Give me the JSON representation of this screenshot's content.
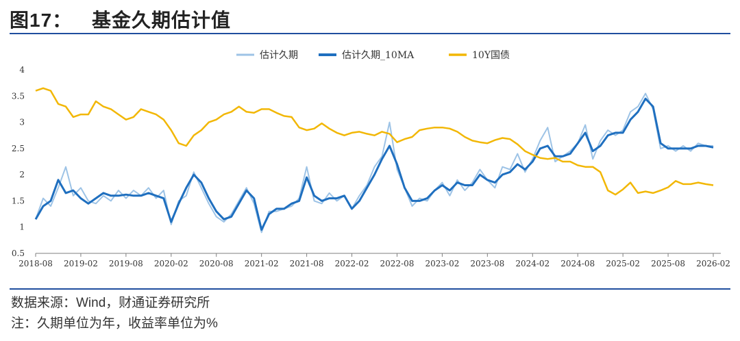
{
  "header": {
    "figure_label": "图17：",
    "title": "基金久期估计值"
  },
  "footer": {
    "source": "数据来源：Wind，财通证券研究所",
    "unit_note": "注：久期单位为年，收益率单位为%"
  },
  "chart_data": {
    "type": "line",
    "ylim": [
      0.5,
      4
    ],
    "yticks": [
      "0.5",
      "1",
      "1.5",
      "2",
      "2.5",
      "3",
      "3.5",
      "4"
    ],
    "xlim": [
      "2018-08",
      "2026-03"
    ],
    "xticks": [
      "2018-08",
      "2019-02",
      "2019-08",
      "2020-02",
      "2020-08",
      "2021-02",
      "2021-08",
      "2022-02",
      "2022-08",
      "2023-02",
      "2023-08",
      "2024-02",
      "2024-08",
      "2025-02",
      "2025-08",
      "2026-02"
    ],
    "legend_position": "top-center",
    "grid": false,
    "series": [
      {
        "name": "估计久期",
        "color": "#9dc3e6",
        "width": 2,
        "points": [
          [
            "2018-08",
            1.15
          ],
          [
            "2018-09",
            1.55
          ],
          [
            "2018-10",
            1.4
          ],
          [
            "2018-11",
            1.75
          ],
          [
            "2018-12",
            2.15
          ],
          [
            "2019-01",
            1.6
          ],
          [
            "2019-02",
            1.75
          ],
          [
            "2019-03",
            1.5
          ],
          [
            "2019-04",
            1.45
          ],
          [
            "2019-05",
            1.6
          ],
          [
            "2019-06",
            1.5
          ],
          [
            "2019-07",
            1.7
          ],
          [
            "2019-08",
            1.55
          ],
          [
            "2019-09",
            1.7
          ],
          [
            "2019-10",
            1.6
          ],
          [
            "2019-11",
            1.75
          ],
          [
            "2019-12",
            1.55
          ],
          [
            "2020-01",
            1.7
          ],
          [
            "2020-02",
            1.05
          ],
          [
            "2020-03",
            1.5
          ],
          [
            "2020-04",
            1.6
          ],
          [
            "2020-05",
            2.05
          ],
          [
            "2020-06",
            1.75
          ],
          [
            "2020-07",
            1.45
          ],
          [
            "2020-08",
            1.2
          ],
          [
            "2020-09",
            1.1
          ],
          [
            "2020-10",
            1.25
          ],
          [
            "2020-11",
            1.5
          ],
          [
            "2020-12",
            1.75
          ],
          [
            "2021-01",
            1.45
          ],
          [
            "2021-02",
            0.9
          ],
          [
            "2021-03",
            1.3
          ],
          [
            "2021-04",
            1.3
          ],
          [
            "2021-05",
            1.35
          ],
          [
            "2021-06",
            1.4
          ],
          [
            "2021-07",
            1.55
          ],
          [
            "2021-08",
            2.15
          ],
          [
            "2021-09",
            1.5
          ],
          [
            "2021-10",
            1.45
          ],
          [
            "2021-11",
            1.65
          ],
          [
            "2021-12",
            1.5
          ],
          [
            "2022-01",
            1.6
          ],
          [
            "2022-02",
            1.35
          ],
          [
            "2022-03",
            1.6
          ],
          [
            "2022-04",
            1.8
          ],
          [
            "2022-05",
            2.15
          ],
          [
            "2022-06",
            2.35
          ],
          [
            "2022-07",
            3.0
          ],
          [
            "2022-08",
            2.1
          ],
          [
            "2022-09",
            1.75
          ],
          [
            "2022-10",
            1.4
          ],
          [
            "2022-11",
            1.55
          ],
          [
            "2022-12",
            1.5
          ],
          [
            "2023-01",
            1.7
          ],
          [
            "2023-02",
            1.85
          ],
          [
            "2023-03",
            1.6
          ],
          [
            "2023-04",
            1.9
          ],
          [
            "2023-05",
            1.7
          ],
          [
            "2023-06",
            1.85
          ],
          [
            "2023-07",
            2.1
          ],
          [
            "2023-08",
            1.9
          ],
          [
            "2023-09",
            1.75
          ],
          [
            "2023-10",
            2.15
          ],
          [
            "2023-11",
            2.1
          ],
          [
            "2023-12",
            2.4
          ],
          [
            "2024-01",
            2.05
          ],
          [
            "2024-02",
            2.3
          ],
          [
            "2024-03",
            2.65
          ],
          [
            "2024-04",
            2.9
          ],
          [
            "2024-05",
            2.25
          ],
          [
            "2024-06",
            2.35
          ],
          [
            "2024-07",
            2.45
          ],
          [
            "2024-08",
            2.6
          ],
          [
            "2024-09",
            2.95
          ],
          [
            "2024-10",
            2.3
          ],
          [
            "2024-11",
            2.65
          ],
          [
            "2024-12",
            2.85
          ],
          [
            "2025-01",
            2.75
          ],
          [
            "2025-02",
            2.85
          ],
          [
            "2025-03",
            3.2
          ],
          [
            "2025-04",
            3.3
          ],
          [
            "2025-05",
            3.55
          ],
          [
            "2025-06",
            3.25
          ],
          [
            "2025-07",
            2.5
          ],
          [
            "2025-08",
            2.55
          ],
          [
            "2025-09",
            2.45
          ],
          [
            "2025-10",
            2.55
          ],
          [
            "2025-11",
            2.45
          ],
          [
            "2025-12",
            2.6
          ],
          [
            "2026-01",
            2.55
          ],
          [
            "2026-02",
            2.55
          ]
        ]
      },
      {
        "name": "估计久期_10MA",
        "color": "#1f6fbf",
        "width": 3,
        "points": [
          [
            "2018-08",
            1.15
          ],
          [
            "2018-09",
            1.4
          ],
          [
            "2018-10",
            1.5
          ],
          [
            "2018-11",
            1.9
          ],
          [
            "2018-12",
            1.65
          ],
          [
            "2019-01",
            1.7
          ],
          [
            "2019-02",
            1.55
          ],
          [
            "2019-03",
            1.45
          ],
          [
            "2019-04",
            1.55
          ],
          [
            "2019-05",
            1.65
          ],
          [
            "2019-06",
            1.6
          ],
          [
            "2019-07",
            1.6
          ],
          [
            "2019-08",
            1.62
          ],
          [
            "2019-09",
            1.6
          ],
          [
            "2019-10",
            1.6
          ],
          [
            "2019-11",
            1.65
          ],
          [
            "2019-12",
            1.6
          ],
          [
            "2020-01",
            1.55
          ],
          [
            "2020-02",
            1.1
          ],
          [
            "2020-03",
            1.45
          ],
          [
            "2020-04",
            1.75
          ],
          [
            "2020-05",
            2.0
          ],
          [
            "2020-06",
            1.85
          ],
          [
            "2020-07",
            1.55
          ],
          [
            "2020-08",
            1.3
          ],
          [
            "2020-09",
            1.15
          ],
          [
            "2020-10",
            1.2
          ],
          [
            "2020-11",
            1.45
          ],
          [
            "2020-12",
            1.7
          ],
          [
            "2021-01",
            1.55
          ],
          [
            "2021-02",
            0.95
          ],
          [
            "2021-03",
            1.25
          ],
          [
            "2021-04",
            1.35
          ],
          [
            "2021-05",
            1.35
          ],
          [
            "2021-06",
            1.45
          ],
          [
            "2021-07",
            1.5
          ],
          [
            "2021-08",
            1.95
          ],
          [
            "2021-09",
            1.6
          ],
          [
            "2021-10",
            1.5
          ],
          [
            "2021-11",
            1.55
          ],
          [
            "2021-12",
            1.55
          ],
          [
            "2022-01",
            1.6
          ],
          [
            "2022-02",
            1.35
          ],
          [
            "2022-03",
            1.5
          ],
          [
            "2022-04",
            1.75
          ],
          [
            "2022-05",
            2.0
          ],
          [
            "2022-06",
            2.3
          ],
          [
            "2022-07",
            2.55
          ],
          [
            "2022-08",
            2.2
          ],
          [
            "2022-09",
            1.75
          ],
          [
            "2022-10",
            1.5
          ],
          [
            "2022-11",
            1.5
          ],
          [
            "2022-12",
            1.55
          ],
          [
            "2023-01",
            1.7
          ],
          [
            "2023-02",
            1.8
          ],
          [
            "2023-03",
            1.7
          ],
          [
            "2023-04",
            1.85
          ],
          [
            "2023-05",
            1.8
          ],
          [
            "2023-06",
            1.8
          ],
          [
            "2023-07",
            2.0
          ],
          [
            "2023-08",
            1.9
          ],
          [
            "2023-09",
            1.85
          ],
          [
            "2023-10",
            2.0
          ],
          [
            "2023-11",
            2.05
          ],
          [
            "2023-12",
            2.2
          ],
          [
            "2024-01",
            2.1
          ],
          [
            "2024-02",
            2.25
          ],
          [
            "2024-03",
            2.5
          ],
          [
            "2024-04",
            2.55
          ],
          [
            "2024-05",
            2.35
          ],
          [
            "2024-06",
            2.35
          ],
          [
            "2024-07",
            2.4
          ],
          [
            "2024-08",
            2.6
          ],
          [
            "2024-09",
            2.8
          ],
          [
            "2024-10",
            2.45
          ],
          [
            "2024-11",
            2.55
          ],
          [
            "2024-12",
            2.75
          ],
          [
            "2025-01",
            2.8
          ],
          [
            "2025-02",
            2.8
          ],
          [
            "2025-03",
            3.05
          ],
          [
            "2025-04",
            3.2
          ],
          [
            "2025-05",
            3.45
          ],
          [
            "2025-06",
            3.3
          ],
          [
            "2025-07",
            2.6
          ],
          [
            "2025-08",
            2.5
          ],
          [
            "2025-09",
            2.5
          ],
          [
            "2025-10",
            2.5
          ],
          [
            "2025-11",
            2.5
          ],
          [
            "2025-12",
            2.55
          ],
          [
            "2026-01",
            2.55
          ],
          [
            "2026-02",
            2.52
          ]
        ]
      },
      {
        "name": "10Y国债",
        "color": "#f2b705",
        "width": 2.5,
        "points": [
          [
            "2018-08",
            3.6
          ],
          [
            "2018-09",
            3.65
          ],
          [
            "2018-10",
            3.6
          ],
          [
            "2018-11",
            3.35
          ],
          [
            "2018-12",
            3.3
          ],
          [
            "2019-01",
            3.1
          ],
          [
            "2019-02",
            3.15
          ],
          [
            "2019-03",
            3.15
          ],
          [
            "2019-04",
            3.4
          ],
          [
            "2019-05",
            3.3
          ],
          [
            "2019-06",
            3.25
          ],
          [
            "2019-07",
            3.15
          ],
          [
            "2019-08",
            3.05
          ],
          [
            "2019-09",
            3.1
          ],
          [
            "2019-10",
            3.25
          ],
          [
            "2019-11",
            3.2
          ],
          [
            "2019-12",
            3.15
          ],
          [
            "2020-01",
            3.05
          ],
          [
            "2020-02",
            2.85
          ],
          [
            "2020-03",
            2.6
          ],
          [
            "2020-04",
            2.55
          ],
          [
            "2020-05",
            2.75
          ],
          [
            "2020-06",
            2.85
          ],
          [
            "2020-07",
            3.0
          ],
          [
            "2020-08",
            3.05
          ],
          [
            "2020-09",
            3.15
          ],
          [
            "2020-10",
            3.2
          ],
          [
            "2020-11",
            3.3
          ],
          [
            "2020-12",
            3.2
          ],
          [
            "2021-01",
            3.18
          ],
          [
            "2021-02",
            3.25
          ],
          [
            "2021-03",
            3.25
          ],
          [
            "2021-04",
            3.18
          ],
          [
            "2021-05",
            3.12
          ],
          [
            "2021-06",
            3.1
          ],
          [
            "2021-07",
            2.9
          ],
          [
            "2021-08",
            2.85
          ],
          [
            "2021-09",
            2.88
          ],
          [
            "2021-10",
            2.98
          ],
          [
            "2021-11",
            2.88
          ],
          [
            "2021-12",
            2.8
          ],
          [
            "2022-01",
            2.75
          ],
          [
            "2022-02",
            2.8
          ],
          [
            "2022-03",
            2.82
          ],
          [
            "2022-04",
            2.78
          ],
          [
            "2022-05",
            2.75
          ],
          [
            "2022-06",
            2.82
          ],
          [
            "2022-07",
            2.78
          ],
          [
            "2022-08",
            2.62
          ],
          [
            "2022-09",
            2.68
          ],
          [
            "2022-10",
            2.72
          ],
          [
            "2022-11",
            2.85
          ],
          [
            "2022-12",
            2.88
          ],
          [
            "2023-01",
            2.9
          ],
          [
            "2023-02",
            2.9
          ],
          [
            "2023-03",
            2.88
          ],
          [
            "2023-04",
            2.82
          ],
          [
            "2023-05",
            2.72
          ],
          [
            "2023-06",
            2.65
          ],
          [
            "2023-07",
            2.62
          ],
          [
            "2023-08",
            2.6
          ],
          [
            "2023-09",
            2.66
          ],
          [
            "2023-10",
            2.7
          ],
          [
            "2023-11",
            2.68
          ],
          [
            "2023-12",
            2.58
          ],
          [
            "2024-01",
            2.45
          ],
          [
            "2024-02",
            2.38
          ],
          [
            "2024-03",
            2.32
          ],
          [
            "2024-04",
            2.3
          ],
          [
            "2024-05",
            2.32
          ],
          [
            "2024-06",
            2.25
          ],
          [
            "2024-07",
            2.25
          ],
          [
            "2024-08",
            2.18
          ],
          [
            "2024-09",
            2.15
          ],
          [
            "2024-10",
            2.15
          ],
          [
            "2024-11",
            2.05
          ],
          [
            "2024-12",
            1.7
          ],
          [
            "2025-01",
            1.62
          ],
          [
            "2025-02",
            1.72
          ],
          [
            "2025-03",
            1.85
          ],
          [
            "2025-04",
            1.65
          ],
          [
            "2025-05",
            1.68
          ],
          [
            "2025-06",
            1.65
          ],
          [
            "2025-07",
            1.7
          ],
          [
            "2025-08",
            1.76
          ],
          [
            "2025-09",
            1.88
          ],
          [
            "2025-10",
            1.82
          ],
          [
            "2025-11",
            1.82
          ],
          [
            "2025-12",
            1.85
          ],
          [
            "2026-01",
            1.82
          ],
          [
            "2026-02",
            1.8
          ]
        ]
      }
    ]
  }
}
